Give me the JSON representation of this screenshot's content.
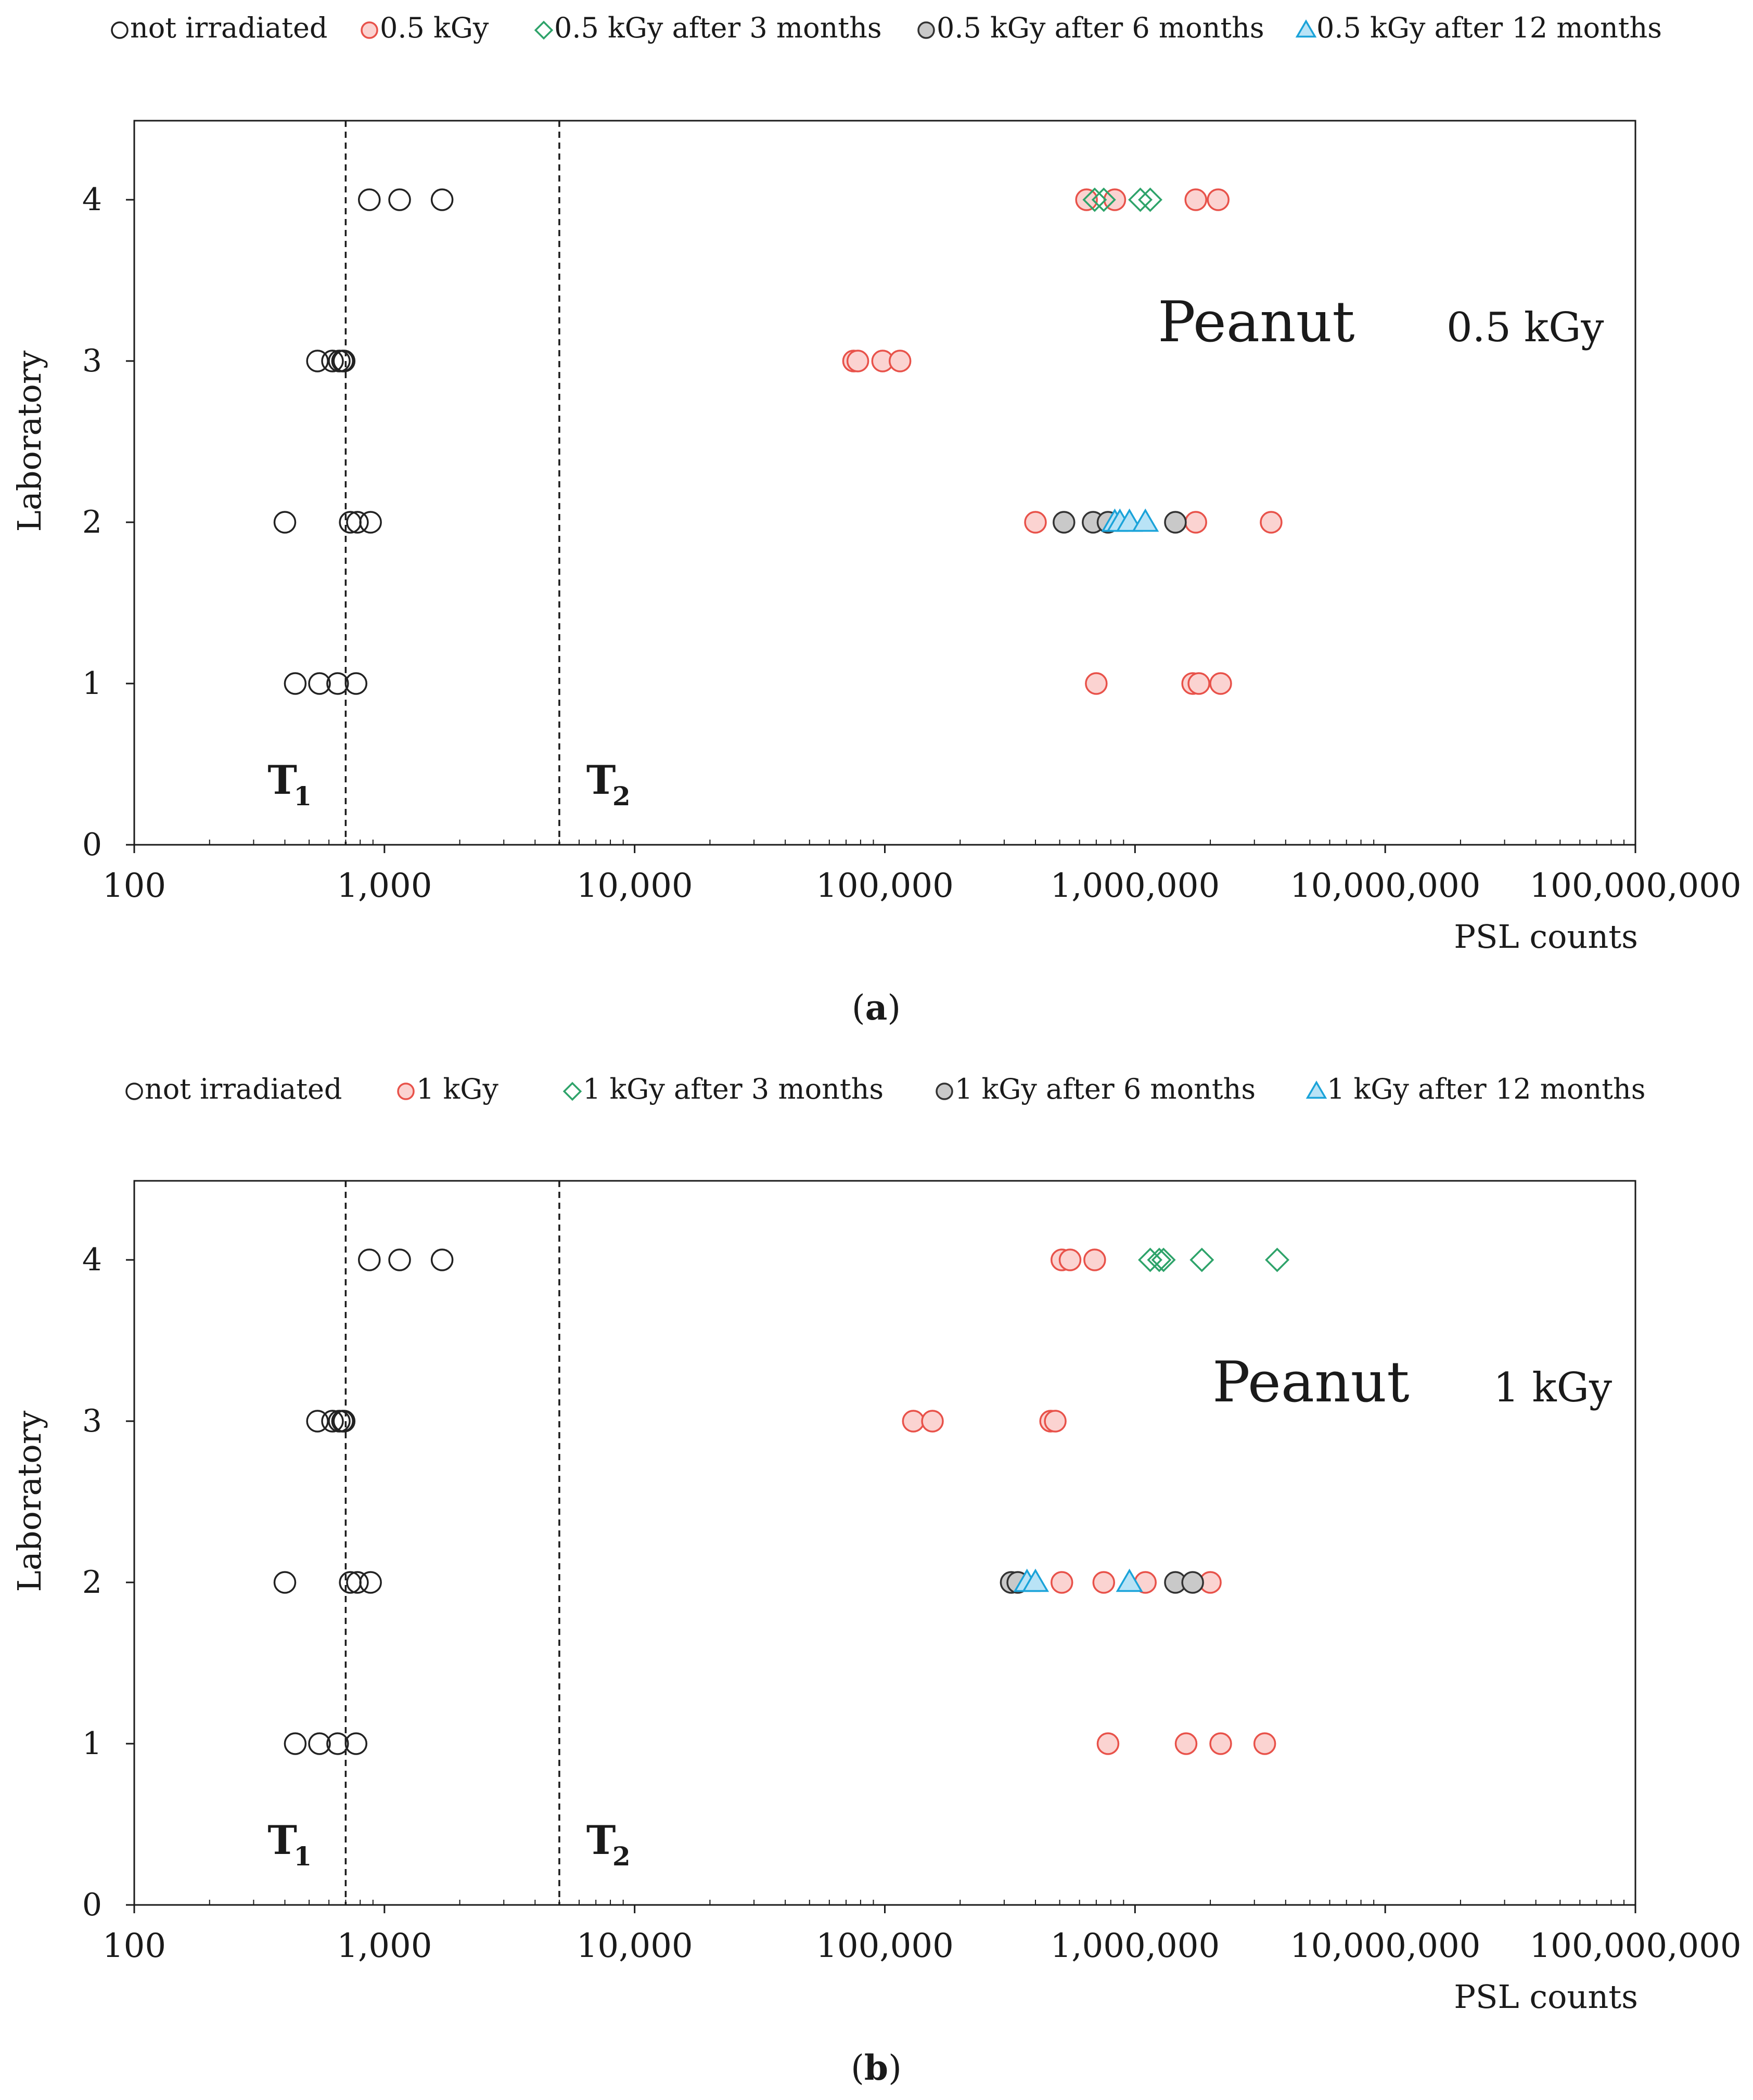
{
  "chart_data": [
    {
      "type": "scatter",
      "id": "a",
      "panel_label": "(a)",
      "panel_letter": "a",
      "annotation": {
        "product": "Peanut",
        "dose": "0.5 kGy"
      },
      "xlabel": "PSL counts",
      "ylabel": "Laboratory",
      "xscale": "log",
      "xlim": [
        100,
        100000000
      ],
      "ylim": [
        0,
        4.5
      ],
      "xticks": [
        100,
        1000,
        10000,
        100000,
        1000000,
        10000000,
        100000000
      ],
      "xtick_labels": [
        "100",
        "1,000",
        "10,000",
        "100,000",
        "1,000,000",
        "10,000,000",
        "100,000,000"
      ],
      "yticks": [
        0,
        1,
        2,
        3,
        4
      ],
      "ytick_labels": [
        "0",
        "1",
        "2",
        "3",
        "4"
      ],
      "thresholds": [
        {
          "label": "T",
          "subscript": "1",
          "x": 700
        },
        {
          "label": "T",
          "subscript": "2",
          "x": 5000
        }
      ],
      "series": [
        {
          "name": "not irradiated",
          "marker": "circle",
          "stroke": "#222222",
          "fill": "none",
          "points": [
            [
              870,
              4
            ],
            [
              1150,
              4
            ],
            [
              1700,
              4
            ],
            [
              540,
              3
            ],
            [
              620,
              3
            ],
            [
              660,
              3
            ],
            [
              680,
              3
            ],
            [
              690,
              3
            ],
            [
              400,
              2
            ],
            [
              730,
              2
            ],
            [
              780,
              2
            ],
            [
              880,
              2
            ],
            [
              440,
              1
            ],
            [
              550,
              1
            ],
            [
              650,
              1
            ],
            [
              770,
              1
            ]
          ]
        },
        {
          "name": "0.5 kGy",
          "marker": "circle",
          "stroke": "#e8524a",
          "fill": "#fbd3d1",
          "points": [
            [
              640000,
              4
            ],
            [
              830000,
              4
            ],
            [
              1750000,
              4
            ],
            [
              2150000,
              4
            ],
            [
              75000,
              3
            ],
            [
              78000,
              3
            ],
            [
              98000,
              3
            ],
            [
              115000,
              3
            ],
            [
              400000,
              2
            ],
            [
              1750000,
              2
            ],
            [
              3500000,
              2
            ],
            [
              700000,
              1
            ],
            [
              1700000,
              1
            ],
            [
              1800000,
              1
            ],
            [
              2200000,
              1
            ]
          ]
        },
        {
          "name": "0.5 kGy after 3 months",
          "marker": "diamond",
          "stroke": "#2ea36a",
          "fill": "none",
          "points": [
            [
              690000,
              4
            ],
            [
              750000,
              4
            ],
            [
              1050000,
              4
            ],
            [
              1150000,
              4
            ]
          ]
        },
        {
          "name": "0.5 kGy after 6 months",
          "marker": "circle",
          "stroke": "#333333",
          "fill": "#c9c9c9",
          "points": [
            [
              520000,
              2
            ],
            [
              680000,
              2
            ],
            [
              780000,
              2
            ],
            [
              1450000,
              2
            ]
          ]
        },
        {
          "name": "0.5 kGy after 12 months",
          "marker": "triangle",
          "stroke": "#1aa3d9",
          "fill": "#b9e3f6",
          "points": [
            [
              830000,
              2
            ],
            [
              870000,
              2
            ],
            [
              950000,
              2
            ],
            [
              1100000,
              2
            ]
          ]
        }
      ]
    },
    {
      "type": "scatter",
      "id": "b",
      "panel_label": "(b)",
      "panel_letter": "b",
      "annotation": {
        "product": "Peanut",
        "dose": "1 kGy"
      },
      "xlabel": "PSL counts",
      "ylabel": "Laboratory",
      "xscale": "log",
      "xlim": [
        100,
        100000000
      ],
      "ylim": [
        0,
        4.5
      ],
      "xticks": [
        100,
        1000,
        10000,
        100000,
        1000000,
        10000000,
        100000000
      ],
      "xtick_labels": [
        "100",
        "1,000",
        "10,000",
        "100,000",
        "1,000,000",
        "10,000,000",
        "100,000,000"
      ],
      "yticks": [
        0,
        1,
        2,
        3,
        4
      ],
      "ytick_labels": [
        "0",
        "1",
        "2",
        "3",
        "4"
      ],
      "thresholds": [
        {
          "label": "T",
          "subscript": "1",
          "x": 700
        },
        {
          "label": "T",
          "subscript": "2",
          "x": 5000
        }
      ],
      "series": [
        {
          "name": "not irradiated",
          "marker": "circle",
          "stroke": "#222222",
          "fill": "none",
          "points": [
            [
              870,
              4
            ],
            [
              1150,
              4
            ],
            [
              1700,
              4
            ],
            [
              540,
              3
            ],
            [
              620,
              3
            ],
            [
              660,
              3
            ],
            [
              680,
              3
            ],
            [
              690,
              3
            ],
            [
              400,
              2
            ],
            [
              730,
              2
            ],
            [
              780,
              2
            ],
            [
              880,
              2
            ],
            [
              440,
              1
            ],
            [
              550,
              1
            ],
            [
              650,
              1
            ],
            [
              770,
              1
            ]
          ]
        },
        {
          "name": "1 kGy",
          "marker": "circle",
          "stroke": "#e8524a",
          "fill": "#fbd3d1",
          "points": [
            [
              510000,
              4
            ],
            [
              550000,
              4
            ],
            [
              690000,
              4
            ],
            [
              130000,
              3
            ],
            [
              155000,
              3
            ],
            [
              460000,
              3
            ],
            [
              480000,
              3
            ],
            [
              510000,
              2
            ],
            [
              750000,
              2
            ],
            [
              1100000,
              2
            ],
            [
              2000000,
              2
            ],
            [
              780000,
              1
            ],
            [
              1600000,
              1
            ],
            [
              2200000,
              1
            ],
            [
              3300000,
              1
            ]
          ]
        },
        {
          "name": "1 kGy after 3 months",
          "marker": "diamond",
          "stroke": "#2ea36a",
          "fill": "none",
          "points": [
            [
              1150000,
              4
            ],
            [
              1250000,
              4
            ],
            [
              1300000,
              4
            ],
            [
              1850000,
              4
            ],
            [
              3700000,
              4
            ]
          ]
        },
        {
          "name": "1 kGy after 6 months",
          "marker": "circle",
          "stroke": "#333333",
          "fill": "#c9c9c9",
          "points": [
            [
              320000,
              2
            ],
            [
              340000,
              2
            ],
            [
              1450000,
              2
            ],
            [
              1700000,
              2
            ]
          ]
        },
        {
          "name": "1 kGy after 12 months",
          "marker": "triangle",
          "stroke": "#1aa3d9",
          "fill": "#b9e3f6",
          "points": [
            [
              370000,
              2
            ],
            [
              400000,
              2
            ],
            [
              950000,
              2
            ]
          ]
        }
      ]
    }
  ]
}
